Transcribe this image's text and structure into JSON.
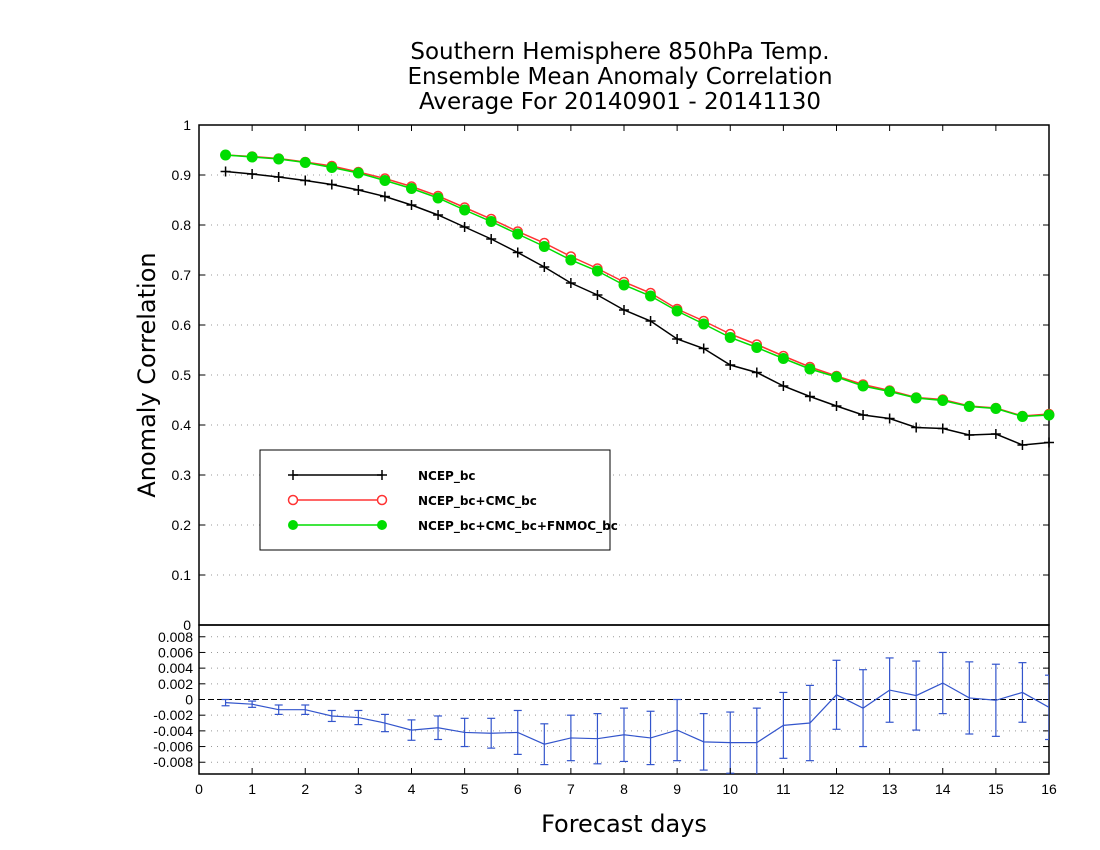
{
  "chart_data": {
    "type": "line",
    "title_lines": [
      "Southern Hemisphere 850hPa Temp.",
      "Ensemble Mean Anomaly Correlation",
      "Average For 20140901 - 20141130"
    ],
    "xlabel": "Forecast days",
    "ylabel": "Anomaly Correlation",
    "xlim": [
      0,
      16
    ],
    "x_ticks": [
      "0",
      "1",
      "2",
      "3",
      "4",
      "5",
      "6",
      "7",
      "8",
      "9",
      "10",
      "11",
      "12",
      "13",
      "14",
      "15",
      "16"
    ],
    "upper_panel": {
      "ylim": [
        0,
        1
      ],
      "y_ticks": [
        "0",
        "0.1",
        "0.2",
        "0.3",
        "0.4",
        "0.5",
        "0.6",
        "0.7",
        "0.8",
        "0.9",
        "1"
      ],
      "grid": true,
      "legend_position": "lower-left",
      "x": [
        0.5,
        1,
        1.5,
        2,
        2.5,
        3,
        3.5,
        4,
        4.5,
        5,
        5.5,
        6,
        6.5,
        7,
        7.5,
        8,
        8.5,
        9,
        9.5,
        10,
        10.5,
        11,
        11.5,
        12,
        12.5,
        13,
        13.5,
        14,
        14.5,
        15,
        15.5,
        16
      ],
      "series": [
        {
          "name": "NCEP_bc",
          "color": "#000000",
          "marker": "plus",
          "values": [
            0.907,
            0.902,
            0.896,
            0.889,
            0.881,
            0.87,
            0.857,
            0.84,
            0.82,
            0.796,
            0.772,
            0.745,
            0.716,
            0.684,
            0.66,
            0.63,
            0.608,
            0.572,
            0.553,
            0.52,
            0.505,
            0.478,
            0.457,
            0.438,
            0.42,
            0.413,
            0.395,
            0.393,
            0.38,
            0.382,
            0.36,
            0.365
          ]
        },
        {
          "name": "NCEP_bc+CMC_bc",
          "color": "#ff3333",
          "marker": "open-circle",
          "values": [
            0.94,
            0.937,
            0.933,
            0.926,
            0.918,
            0.906,
            0.893,
            0.877,
            0.858,
            0.835,
            0.812,
            0.787,
            0.764,
            0.737,
            0.713,
            0.686,
            0.664,
            0.632,
            0.608,
            0.582,
            0.561,
            0.538,
            0.516,
            0.498,
            0.481,
            0.469,
            0.455,
            0.451,
            0.438,
            0.434,
            0.418,
            0.422
          ]
        },
        {
          "name": "NCEP_bc+CMC_bc+FNMOC_bc",
          "color": "#00dd00",
          "marker": "filled-circle",
          "values": [
            0.94,
            0.936,
            0.932,
            0.925,
            0.915,
            0.904,
            0.889,
            0.873,
            0.854,
            0.83,
            0.807,
            0.782,
            0.757,
            0.73,
            0.708,
            0.68,
            0.658,
            0.628,
            0.602,
            0.575,
            0.555,
            0.533,
            0.512,
            0.496,
            0.478,
            0.467,
            0.454,
            0.449,
            0.437,
            0.433,
            0.417,
            0.42
          ]
        }
      ]
    },
    "lower_panel": {
      "ylim": [
        -0.0095,
        0.0095
      ],
      "y_ticks": [
        "-0.008",
        "-0.006",
        "-0.004",
        "-0.002",
        "0",
        "0.002",
        "0.004",
        "0.006",
        "0.008"
      ],
      "grid": true,
      "series": [
        {
          "name": "difference",
          "color": "#3355cc",
          "x": [
            0.5,
            1,
            1.5,
            2,
            2.5,
            3,
            3.5,
            4,
            4.5,
            5,
            5.5,
            6,
            6.5,
            7,
            7.5,
            8,
            8.5,
            9,
            9.5,
            10,
            10.5,
            11,
            11.5,
            12,
            12.5,
            13,
            13.5,
            14,
            14.5,
            15,
            15.5,
            16
          ],
          "values": [
            -0.0004,
            -0.0006,
            -0.0013,
            -0.0013,
            -0.0021,
            -0.0023,
            -0.003,
            -0.0039,
            -0.0036,
            -0.0042,
            -0.0043,
            -0.0042,
            -0.0057,
            -0.0049,
            -0.005,
            -0.0045,
            -0.0049,
            -0.0039,
            -0.0054,
            -0.0055,
            -0.0055,
            -0.0033,
            -0.003,
            0.0006,
            -0.0011,
            0.0012,
            0.0005,
            0.0021,
            0.0002,
            -0.0001,
            0.0009,
            -0.001
          ],
          "error": [
            0.0004,
            0.0004,
            0.0006,
            0.0006,
            0.0007,
            0.0009,
            0.0011,
            0.0013,
            0.0015,
            0.0018,
            0.0019,
            0.0028,
            0.0026,
            0.0029,
            0.0032,
            0.0034,
            0.0034,
            0.0039,
            0.0036,
            0.0039,
            0.0044,
            0.0042,
            0.0048,
            0.0044,
            0.0049,
            0.0041,
            0.0044,
            0.0039,
            0.0046,
            0.0046,
            0.0038,
            0.0041
          ]
        }
      ]
    }
  }
}
